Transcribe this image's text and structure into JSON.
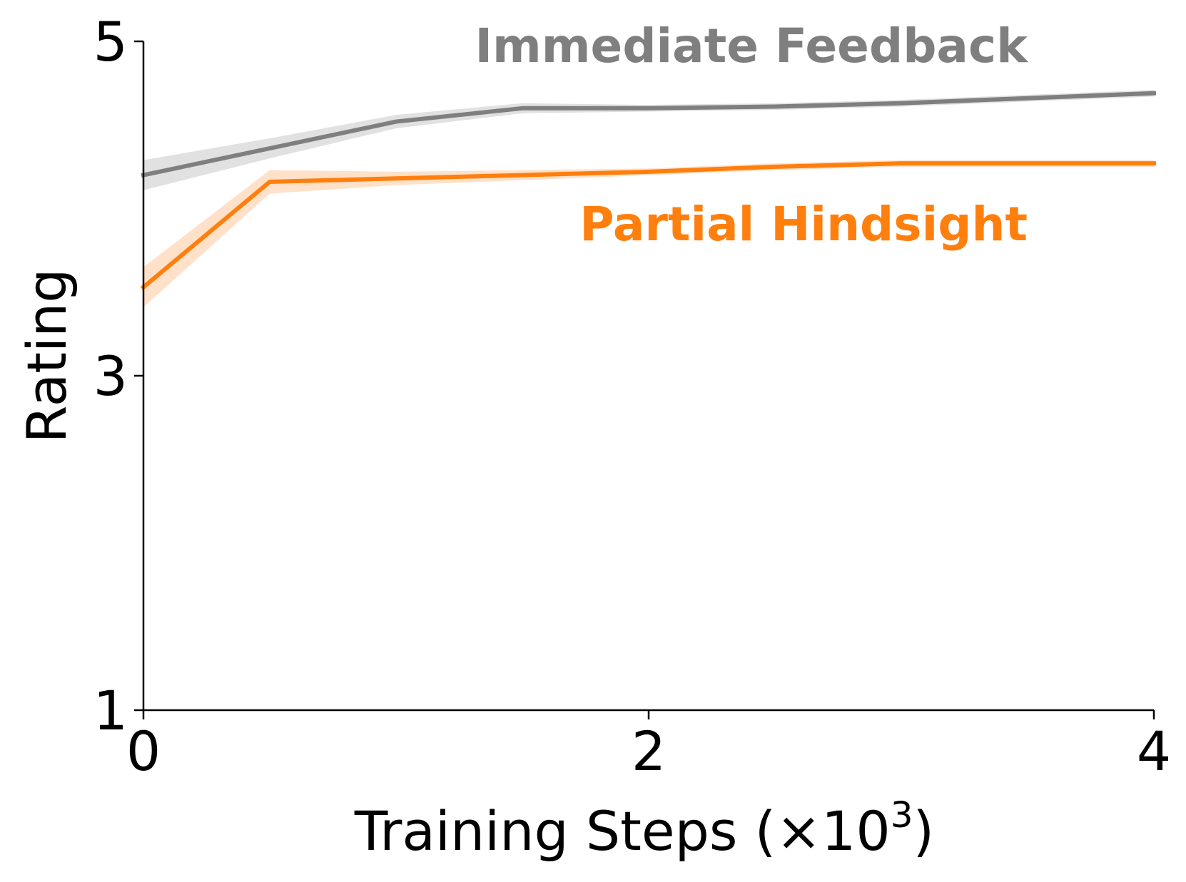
{
  "chart_data": {
    "type": "line",
    "title": "",
    "xlabel": "Training Steps (×10",
    "xlabel_superscript": "3",
    "xlabel_close": ")",
    "ylabel": "Rating",
    "xlim": [
      0,
      4
    ],
    "ylim": [
      1,
      5
    ],
    "x_ticks": [
      {
        "value": 0,
        "label": "0"
      },
      {
        "value": 2,
        "label": "2"
      },
      {
        "value": 4,
        "label": "4"
      }
    ],
    "y_ticks": [
      {
        "value": 1,
        "label": "1"
      },
      {
        "value": 3,
        "label": "3"
      },
      {
        "value": 5,
        "label": "5"
      }
    ],
    "grid": false,
    "legend": "inline labels",
    "series": [
      {
        "name": "Immediate Feedback",
        "color": "#7f7f7f",
        "band_color": "#c8c8c8",
        "x": [
          0,
          0.5,
          1.0,
          1.5,
          2.0,
          2.5,
          3.0,
          3.5,
          4.0
        ],
        "y": [
          4.2,
          4.36,
          4.52,
          4.6,
          4.6,
          4.61,
          4.63,
          4.66,
          4.69
        ],
        "err": [
          0.09,
          0.06,
          0.04,
          0.03,
          0.02,
          0.02,
          0.02,
          0.02,
          0.02
        ]
      },
      {
        "name": "Partial Hindsight",
        "color": "#ff7f0e",
        "band_color": "#ffc89c",
        "x": [
          0,
          0.5,
          1.0,
          1.5,
          2.0,
          2.5,
          3.0,
          3.5,
          4.0
        ],
        "y": [
          3.53,
          4.16,
          4.18,
          4.2,
          4.22,
          4.25,
          4.27,
          4.27,
          4.27
        ],
        "err": [
          0.12,
          0.07,
          0.04,
          0.03,
          0.02,
          0.02,
          0.02,
          0.02,
          0.02
        ]
      }
    ]
  }
}
